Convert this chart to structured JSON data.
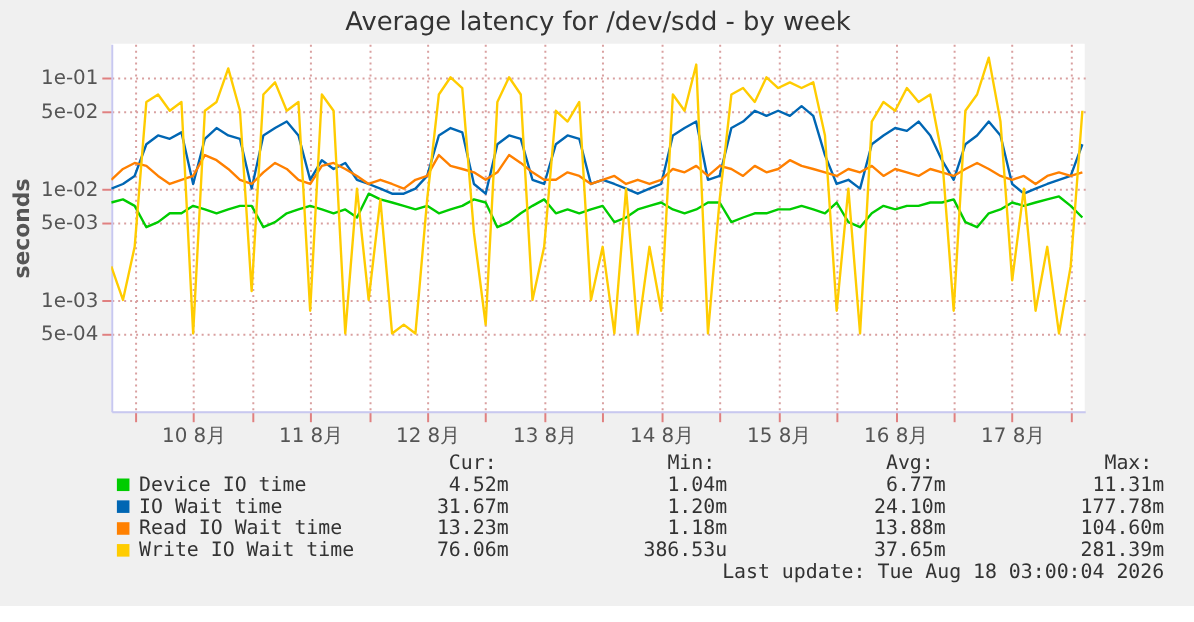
{
  "chart_data": {
    "type": "line",
    "title": "Average latency for /dev/sdd - by week",
    "ylabel": "seconds",
    "x": [
      "2026-08-09T19:12",
      "2026-08-09T21:36",
      "2026-08-10T00:00",
      "2026-08-10T02:24",
      "2026-08-10T04:48",
      "2026-08-10T07:12",
      "2026-08-10T09:36",
      "2026-08-10T12:00",
      "2026-08-10T14:24",
      "2026-08-10T16:48",
      "2026-08-10T19:12",
      "2026-08-10T21:36",
      "2026-08-11T00:00",
      "2026-08-11T02:24",
      "2026-08-11T04:48",
      "2026-08-11T07:12",
      "2026-08-11T09:36",
      "2026-08-11T12:00",
      "2026-08-11T14:24",
      "2026-08-11T16:48",
      "2026-08-11T19:12",
      "2026-08-11T21:36",
      "2026-08-12T00:00",
      "2026-08-12T02:24",
      "2026-08-12T04:48",
      "2026-08-12T07:12",
      "2026-08-12T09:36",
      "2026-08-12T12:00",
      "2026-08-12T14:24",
      "2026-08-12T16:48",
      "2026-08-12T19:12",
      "2026-08-12T21:36",
      "2026-08-13T00:00",
      "2026-08-13T02:24",
      "2026-08-13T04:48",
      "2026-08-13T07:12",
      "2026-08-13T09:36",
      "2026-08-13T12:00",
      "2026-08-13T14:24",
      "2026-08-13T16:48",
      "2026-08-13T19:12",
      "2026-08-13T21:36",
      "2026-08-14T00:00",
      "2026-08-14T02:24",
      "2026-08-14T04:48",
      "2026-08-14T07:12",
      "2026-08-14T09:36",
      "2026-08-14T12:00",
      "2026-08-14T14:24",
      "2026-08-14T16:48",
      "2026-08-14T19:12",
      "2026-08-14T21:36",
      "2026-08-15T00:00",
      "2026-08-15T02:24",
      "2026-08-15T04:48",
      "2026-08-15T07:12",
      "2026-08-15T09:36",
      "2026-08-15T12:00",
      "2026-08-15T14:24",
      "2026-08-15T16:48",
      "2026-08-15T19:12",
      "2026-08-15T21:36",
      "2026-08-16T00:00",
      "2026-08-16T02:24",
      "2026-08-16T04:48",
      "2026-08-16T07:12",
      "2026-08-16T09:36",
      "2026-08-16T12:00",
      "2026-08-16T14:24",
      "2026-08-16T16:48",
      "2026-08-16T19:12",
      "2026-08-16T21:36",
      "2026-08-17T00:00",
      "2026-08-17T02:24",
      "2026-08-17T04:48",
      "2026-08-17T07:12",
      "2026-08-17T09:36",
      "2026-08-17T12:00",
      "2026-08-17T14:24",
      "2026-08-17T16:48",
      "2026-08-17T19:12",
      "2026-08-17T21:36",
      "2026-08-18T00:00",
      "2026-08-18T02:24"
    ],
    "series": [
      {
        "name": "Device IO time",
        "color": "#00cc00",
        "values": [
          0.0075,
          0.008,
          0.007,
          0.0045,
          0.005,
          0.006,
          0.006,
          0.007,
          0.0065,
          0.006,
          0.0065,
          0.007,
          0.007,
          0.0045,
          0.005,
          0.006,
          0.0065,
          0.007,
          0.0065,
          0.006,
          0.0065,
          0.0055,
          0.009,
          0.008,
          0.0075,
          0.007,
          0.0065,
          0.007,
          0.006,
          0.0065,
          0.007,
          0.008,
          0.0075,
          0.0045,
          0.005,
          0.006,
          0.007,
          0.008,
          0.006,
          0.0065,
          0.006,
          0.0065,
          0.007,
          0.005,
          0.0055,
          0.0065,
          0.007,
          0.0075,
          0.0065,
          0.006,
          0.0065,
          0.0075,
          0.0075,
          0.005,
          0.0055,
          0.006,
          0.006,
          0.0065,
          0.0065,
          0.007,
          0.0065,
          0.006,
          0.0075,
          0.005,
          0.0045,
          0.006,
          0.007,
          0.0065,
          0.007,
          0.007,
          0.0075,
          0.0075,
          0.008,
          0.005,
          0.0045,
          0.006,
          0.0065,
          0.0075,
          0.007,
          0.0075,
          0.008,
          0.0085,
          0.007,
          0.0055
        ]
      },
      {
        "name": "IO Wait time",
        "color": "#0066b3",
        "values": [
          0.01,
          0.011,
          0.013,
          0.025,
          0.03,
          0.028,
          0.032,
          0.011,
          0.028,
          0.035,
          0.03,
          0.028,
          0.01,
          0.03,
          0.035,
          0.04,
          0.03,
          0.012,
          0.018,
          0.015,
          0.017,
          0.012,
          0.011,
          0.01,
          0.009,
          0.009,
          0.01,
          0.013,
          0.03,
          0.035,
          0.032,
          0.011,
          0.009,
          0.025,
          0.03,
          0.028,
          0.012,
          0.011,
          0.025,
          0.03,
          0.028,
          0.011,
          0.012,
          0.011,
          0.01,
          0.009,
          0.01,
          0.011,
          0.03,
          0.035,
          0.04,
          0.012,
          0.013,
          0.035,
          0.04,
          0.05,
          0.045,
          0.05,
          0.045,
          0.055,
          0.045,
          0.02,
          0.011,
          0.012,
          0.01,
          0.025,
          0.03,
          0.035,
          0.033,
          0.04,
          0.03,
          0.018,
          0.012,
          0.025,
          0.03,
          0.04,
          0.03,
          0.011,
          0.009,
          0.01,
          0.011,
          0.012,
          0.013,
          0.025
        ]
      },
      {
        "name": "Read IO Wait time",
        "color": "#ff8000",
        "values": [
          0.012,
          0.015,
          0.017,
          0.016,
          0.013,
          0.011,
          0.012,
          0.013,
          0.02,
          0.018,
          0.015,
          0.012,
          0.011,
          0.014,
          0.017,
          0.015,
          0.012,
          0.011,
          0.016,
          0.017,
          0.015,
          0.013,
          0.011,
          0.012,
          0.011,
          0.01,
          0.012,
          0.013,
          0.02,
          0.016,
          0.015,
          0.014,
          0.012,
          0.014,
          0.02,
          0.017,
          0.014,
          0.012,
          0.012,
          0.014,
          0.013,
          0.011,
          0.012,
          0.013,
          0.011,
          0.012,
          0.011,
          0.012,
          0.015,
          0.014,
          0.016,
          0.013,
          0.016,
          0.015,
          0.013,
          0.016,
          0.014,
          0.015,
          0.018,
          0.016,
          0.015,
          0.014,
          0.013,
          0.015,
          0.014,
          0.016,
          0.013,
          0.015,
          0.014,
          0.013,
          0.015,
          0.014,
          0.013,
          0.015,
          0.017,
          0.015,
          0.013,
          0.012,
          0.013,
          0.011,
          0.013,
          0.014,
          0.013,
          0.014
        ]
      },
      {
        "name": "Write IO Wait time",
        "color": "#ffcc00",
        "values": [
          0.002,
          0.001,
          0.003,
          0.06,
          0.07,
          0.05,
          0.06,
          0.0005,
          0.05,
          0.06,
          0.12,
          0.05,
          0.0012,
          0.07,
          0.09,
          0.05,
          0.06,
          0.0008,
          0.07,
          0.05,
          0.0005,
          0.01,
          0.001,
          0.008,
          0.0005,
          0.0006,
          0.0005,
          0.008,
          0.07,
          0.1,
          0.08,
          0.004,
          0.0006,
          0.06,
          0.1,
          0.07,
          0.001,
          0.003,
          0.05,
          0.04,
          0.06,
          0.001,
          0.003,
          0.0005,
          0.01,
          0.0005,
          0.003,
          0.0008,
          0.07,
          0.05,
          0.13,
          0.0005,
          0.008,
          0.07,
          0.08,
          0.06,
          0.1,
          0.08,
          0.09,
          0.08,
          0.09,
          0.03,
          0.0008,
          0.01,
          0.0005,
          0.04,
          0.06,
          0.05,
          0.08,
          0.06,
          0.07,
          0.02,
          0.0008,
          0.05,
          0.07,
          0.15,
          0.04,
          0.0015,
          0.01,
          0.0008,
          0.003,
          0.0005,
          0.002,
          0.05
        ]
      }
    ],
    "xlim": [
      "2026-08-09T19:12",
      "2026-08-18T02:53"
    ],
    "xticks": [
      {
        "value": "2026-08-10T00:00",
        "label": null
      },
      {
        "value": "2026-08-10T12:00",
        "label": "10 8月"
      },
      {
        "value": "2026-08-11T00:00",
        "label": null
      },
      {
        "value": "2026-08-11T12:00",
        "label": "11 8月"
      },
      {
        "value": "2026-08-12T00:00",
        "label": null
      },
      {
        "value": "2026-08-12T12:00",
        "label": "12 8月"
      },
      {
        "value": "2026-08-13T00:00",
        "label": null
      },
      {
        "value": "2026-08-13T12:00",
        "label": "13 8月"
      },
      {
        "value": "2026-08-14T00:00",
        "label": null
      },
      {
        "value": "2026-08-14T12:00",
        "label": "14 8月"
      },
      {
        "value": "2026-08-15T00:00",
        "label": null
      },
      {
        "value": "2026-08-15T12:00",
        "label": "15 8月"
      },
      {
        "value": "2026-08-16T00:00",
        "label": null
      },
      {
        "value": "2026-08-16T12:00",
        "label": "16 8月"
      },
      {
        "value": "2026-08-17T00:00",
        "label": null
      },
      {
        "value": "2026-08-17T12:00",
        "label": "17 8月"
      },
      {
        "value": "2026-08-18T00:00",
        "label": null
      }
    ],
    "ylim": [
      0.0001,
      0.2
    ],
    "yticks": [
      {
        "value": 0.1,
        "label": "1e-01"
      },
      {
        "value": 0.05,
        "label": "5e-02"
      },
      {
        "value": 0.01,
        "label": "1e-02"
      },
      {
        "value": 0.005,
        "label": "5e-03"
      },
      {
        "value": 0.001,
        "label": "1e-03"
      },
      {
        "value": 0.0005,
        "label": "5e-04"
      }
    ],
    "log": "y",
    "grid": true,
    "legend": "bottom",
    "annotations": [
      "Cur:",
      "Min:",
      "Avg:",
      "Max:",
      "4.52m",
      "1.04m",
      "6.77m",
      "11.31m",
      "31.67m",
      "1.20m",
      "24.10m",
      "177.78m",
      "13.23m",
      "1.18m",
      "13.88m",
      "104.60m",
      "76.06m",
      "386.53u",
      "37.65m",
      "281.39m",
      "Last update: Tue Aug 18 03:00:04 2026"
    ]
  }
}
